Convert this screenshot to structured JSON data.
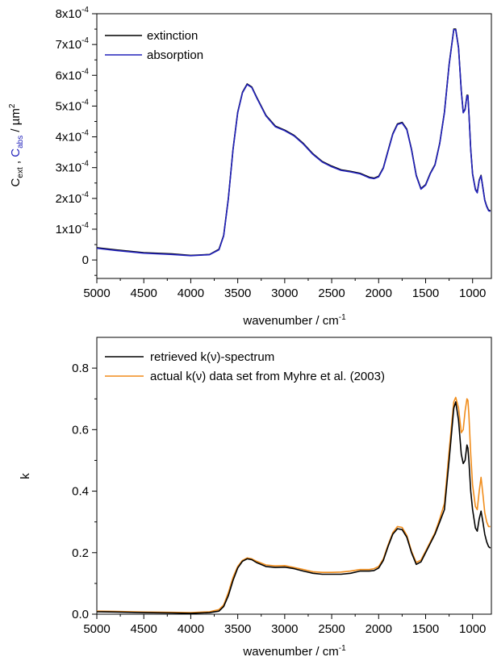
{
  "chart_data": [
    {
      "type": "line",
      "xlabel": "wavenumber / cm",
      "xlabel_sup": "-1",
      "ylabel_parts": [
        "C",
        "ext",
        " , ",
        "C",
        "abs",
        " / µm",
        "2"
      ],
      "xlim": [
        5000,
        800
      ],
      "ylim": [
        -0.6,
        8
      ],
      "y_scale_note": "y values in units of 10^-4 µm^2",
      "xticks": [
        5000,
        4500,
        4000,
        3500,
        3000,
        2500,
        2000,
        1500,
        1000
      ],
      "xtick_labels": [
        "5000",
        "4500",
        "4000",
        "3500",
        "3000",
        "2500",
        "2000",
        "1500",
        "1000"
      ],
      "yticks": [
        0,
        1,
        2,
        3,
        4,
        5,
        6,
        7,
        8
      ],
      "ytick_labels": [
        "0",
        "1x10",
        "2x10",
        "3x10",
        "4x10",
        "5x10",
        "6x10",
        "7x10",
        "8x10"
      ],
      "ytick_exponent": "-4",
      "legend_position": "top-left",
      "series": [
        {
          "name": "extinction",
          "color": "#000000",
          "x": [
            5000,
            4800,
            4500,
            4200,
            4000,
            3800,
            3700,
            3650,
            3600,
            3550,
            3500,
            3450,
            3400,
            3350,
            3300,
            3200,
            3100,
            3000,
            2900,
            2800,
            2700,
            2600,
            2500,
            2400,
            2300,
            2200,
            2100,
            2050,
            2000,
            1950,
            1900,
            1850,
            1800,
            1750,
            1700,
            1650,
            1600,
            1550,
            1500,
            1450,
            1400,
            1350,
            1300,
            1250,
            1200,
            1180,
            1150,
            1120,
            1100,
            1080,
            1060,
            1050,
            1040,
            1020,
            1000,
            970,
            950,
            930,
            910,
            890,
            870,
            850,
            830,
            810
          ],
          "y": [
            0.4,
            0.33,
            0.24,
            0.2,
            0.15,
            0.18,
            0.35,
            0.8,
            2.0,
            3.6,
            4.8,
            5.45,
            5.72,
            5.62,
            5.3,
            4.7,
            4.35,
            4.22,
            4.05,
            3.78,
            3.45,
            3.2,
            3.05,
            2.93,
            2.88,
            2.82,
            2.69,
            2.66,
            2.72,
            3.0,
            3.55,
            4.1,
            4.42,
            4.47,
            4.25,
            3.6,
            2.75,
            2.32,
            2.45,
            2.82,
            3.1,
            3.8,
            4.8,
            6.35,
            7.5,
            7.5,
            6.9,
            5.5,
            4.8,
            4.9,
            5.35,
            5.35,
            4.8,
            3.6,
            2.8,
            2.3,
            2.2,
            2.6,
            2.75,
            2.35,
            1.95,
            1.75,
            1.62,
            1.6
          ]
        },
        {
          "name": "absorption",
          "color": "#2222bb",
          "x": [
            5000,
            4800,
            4500,
            4200,
            4000,
            3800,
            3700,
            3650,
            3600,
            3550,
            3500,
            3450,
            3400,
            3350,
            3300,
            3200,
            3100,
            3000,
            2900,
            2800,
            2700,
            2600,
            2500,
            2400,
            2300,
            2200,
            2100,
            2050,
            2000,
            1950,
            1900,
            1850,
            1800,
            1750,
            1700,
            1650,
            1600,
            1550,
            1500,
            1450,
            1400,
            1350,
            1300,
            1250,
            1200,
            1180,
            1150,
            1120,
            1100,
            1080,
            1060,
            1050,
            1040,
            1020,
            1000,
            970,
            950,
            930,
            910,
            890,
            870,
            850,
            830,
            810
          ],
          "y": [
            0.38,
            0.31,
            0.22,
            0.18,
            0.14,
            0.17,
            0.33,
            0.78,
            1.98,
            3.58,
            4.78,
            5.43,
            5.7,
            5.6,
            5.28,
            4.68,
            4.33,
            4.2,
            4.03,
            3.76,
            3.43,
            3.18,
            3.03,
            2.91,
            2.86,
            2.8,
            2.67,
            2.64,
            2.7,
            2.98,
            3.53,
            4.08,
            4.4,
            4.45,
            4.23,
            3.58,
            2.73,
            2.3,
            2.43,
            2.8,
            3.08,
            3.78,
            4.78,
            6.33,
            7.48,
            7.48,
            6.88,
            5.48,
            4.78,
            4.88,
            5.33,
            5.33,
            4.78,
            3.58,
            2.78,
            2.28,
            2.18,
            2.58,
            2.73,
            2.33,
            1.93,
            1.73,
            1.6,
            1.58
          ]
        }
      ]
    },
    {
      "type": "line",
      "xlabel": "wavenumber / cm",
      "xlabel_sup": "-1",
      "ylabel": "k",
      "xlim": [
        5000,
        800
      ],
      "ylim": [
        0,
        0.9
      ],
      "xticks": [
        5000,
        4500,
        4000,
        3500,
        3000,
        2500,
        2000,
        1500,
        1000
      ],
      "xtick_labels": [
        "5000",
        "4500",
        "4000",
        "3500",
        "3000",
        "2500",
        "2000",
        "1500",
        "1000"
      ],
      "yticks": [
        0,
        0.2,
        0.4,
        0.6,
        0.8
      ],
      "ytick_labels": [
        "0.0",
        "0.2",
        "0.4",
        "0.6",
        "0.8"
      ],
      "legend_position": "top-left",
      "series": [
        {
          "name": "retrieved k(ν)-spectrum",
          "color": "#000000",
          "x": [
            5000,
            4800,
            4500,
            4200,
            4000,
            3800,
            3700,
            3650,
            3600,
            3550,
            3500,
            3450,
            3400,
            3350,
            3300,
            3200,
            3100,
            3000,
            2900,
            2800,
            2700,
            2600,
            2500,
            2400,
            2300,
            2200,
            2100,
            2050,
            2000,
            1950,
            1900,
            1850,
            1800,
            1750,
            1700,
            1650,
            1600,
            1550,
            1500,
            1450,
            1400,
            1350,
            1300,
            1250,
            1200,
            1180,
            1150,
            1120,
            1100,
            1080,
            1060,
            1050,
            1040,
            1020,
            1000,
            970,
            950,
            930,
            910,
            890,
            870,
            850,
            830,
            810
          ],
          "y": [
            0.008,
            0.007,
            0.005,
            0.004,
            0.003,
            0.005,
            0.01,
            0.025,
            0.06,
            0.11,
            0.15,
            0.172,
            0.18,
            0.177,
            0.168,
            0.155,
            0.152,
            0.153,
            0.148,
            0.14,
            0.133,
            0.13,
            0.13,
            0.13,
            0.133,
            0.14,
            0.14,
            0.142,
            0.15,
            0.175,
            0.22,
            0.26,
            0.278,
            0.275,
            0.25,
            0.2,
            0.162,
            0.17,
            0.2,
            0.23,
            0.26,
            0.3,
            0.34,
            0.5,
            0.67,
            0.69,
            0.63,
            0.52,
            0.49,
            0.5,
            0.55,
            0.54,
            0.5,
            0.4,
            0.34,
            0.28,
            0.27,
            0.31,
            0.335,
            0.3,
            0.26,
            0.235,
            0.22,
            0.215
          ]
        },
        {
          "name": "actual k(ν) data set from Myhre et al. (2003)",
          "color": "#f08c1a",
          "x": [
            5000,
            4800,
            4500,
            4200,
            4000,
            3800,
            3700,
            3650,
            3600,
            3550,
            3500,
            3450,
            3400,
            3350,
            3300,
            3200,
            3100,
            3000,
            2900,
            2800,
            2700,
            2600,
            2500,
            2400,
            2300,
            2200,
            2100,
            2050,
            2000,
            1950,
            1900,
            1850,
            1800,
            1750,
            1700,
            1650,
            1600,
            1550,
            1500,
            1450,
            1400,
            1350,
            1300,
            1250,
            1200,
            1180,
            1150,
            1120,
            1100,
            1080,
            1060,
            1050,
            1040,
            1020,
            1000,
            970,
            950,
            930,
            910,
            890,
            870,
            850,
            830,
            810
          ],
          "y": [
            0.01,
            0.009,
            0.007,
            0.006,
            0.005,
            0.008,
            0.015,
            0.03,
            0.07,
            0.12,
            0.155,
            0.175,
            0.183,
            0.18,
            0.172,
            0.16,
            0.157,
            0.158,
            0.152,
            0.145,
            0.138,
            0.136,
            0.136,
            0.137,
            0.14,
            0.145,
            0.145,
            0.148,
            0.155,
            0.18,
            0.225,
            0.265,
            0.285,
            0.282,
            0.256,
            0.205,
            0.168,
            0.176,
            0.205,
            0.235,
            0.265,
            0.31,
            0.36,
            0.53,
            0.69,
            0.705,
            0.67,
            0.59,
            0.6,
            0.66,
            0.7,
            0.695,
            0.65,
            0.52,
            0.42,
            0.35,
            0.34,
            0.4,
            0.445,
            0.39,
            0.33,
            0.3,
            0.285,
            0.285
          ]
        }
      ]
    }
  ]
}
